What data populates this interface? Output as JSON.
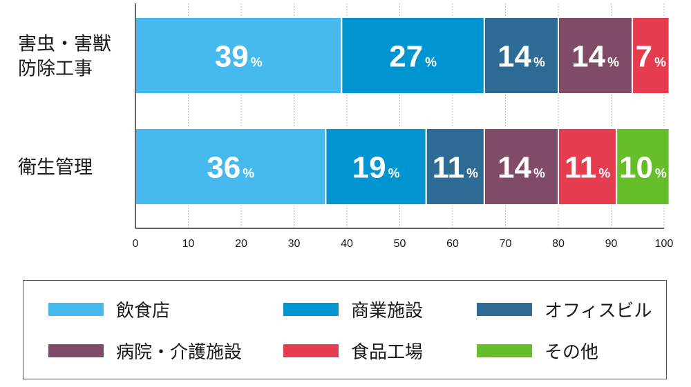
{
  "chart_data": {
    "type": "bar",
    "orientation": "horizontal",
    "stacked": true,
    "categories": [
      "害虫・害獣\n防除工事",
      "衛生管理"
    ],
    "series": [
      {
        "name": "飲食店",
        "values": [
          39,
          36
        ],
        "color": "#46baee"
      },
      {
        "name": "商業施設",
        "values": [
          27,
          19
        ],
        "color": "#0095d1"
      },
      {
        "name": "オフィスビル",
        "values": [
          14,
          11
        ],
        "color": "#2e6b94"
      },
      {
        "name": "病院・介護施設",
        "values": [
          14,
          14
        ],
        "color": "#804b67"
      },
      {
        "name": "食品工場",
        "values": [
          7,
          11
        ],
        "color": "#e63c4f"
      },
      {
        "name": "その他",
        "values": [
          null,
          10
        ],
        "color": "#66bf2a"
      }
    ],
    "xlim": [
      0,
      100
    ],
    "xticks": [
      0,
      10,
      20,
      30,
      40,
      50,
      60,
      70,
      80,
      90,
      100
    ],
    "value_suffix": "%",
    "grid": "vertical dashed",
    "legend_position": "bottom"
  }
}
